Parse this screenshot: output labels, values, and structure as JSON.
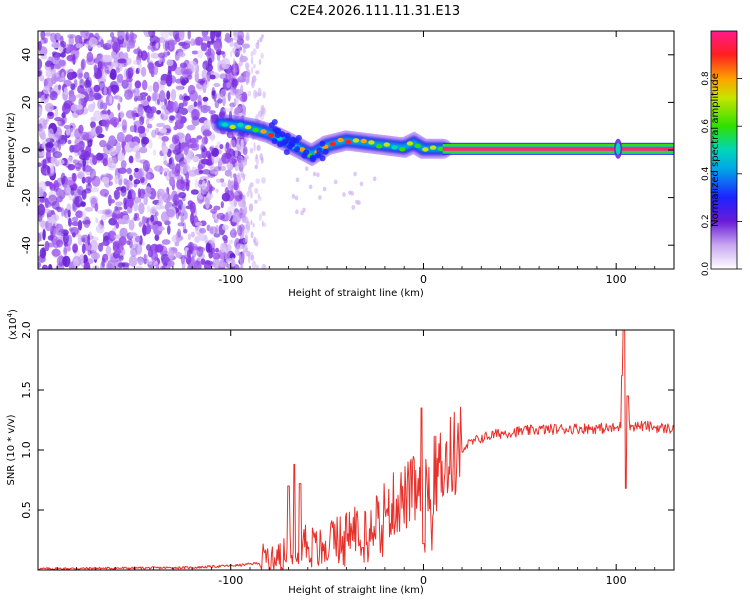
{
  "title": "C2E4.2026.111.11.31.E13",
  "chart_data": [
    {
      "type": "heatmap",
      "subtype": "spectrogram",
      "xlabel": "Height of straight line (km)",
      "ylabel": "Frequency (Hz)",
      "xlim": [
        -200,
        130
      ],
      "ylim": [
        -50,
        50
      ],
      "xticks": [
        -100,
        0,
        100
      ],
      "xtick_labels": [
        "-100",
        "0",
        "100"
      ],
      "yticks": [
        -40,
        -20,
        0,
        20,
        40
      ],
      "ytick_labels": [
        "-40",
        "-20",
        "0",
        "20",
        "40"
      ],
      "colorbar": {
        "label": "Normalized spectral amplitude",
        "range": [
          0,
          1
        ],
        "ticks": [
          0,
          0.2,
          0.4,
          0.6,
          0.8
        ],
        "tick_labels": [
          "0.0",
          "0.2",
          "0.4",
          "0.6",
          "0.8"
        ]
      },
      "noise_region_x": [
        -200,
        -100
      ],
      "ridge": {
        "x": [
          -105,
          -95,
          -88,
          -80,
          -72,
          -65,
          -58,
          -50,
          -40,
          -30,
          -20,
          -10,
          -5,
          0,
          10
        ],
        "freq": [
          11,
          10,
          9,
          7,
          4,
          1,
          -2,
          2,
          4,
          3,
          2,
          1,
          3,
          0.5,
          0.5
        ]
      },
      "steady_line": {
        "x": [
          10,
          130
        ],
        "freq": 0.5
      },
      "spike_x": 101
    },
    {
      "type": "line",
      "xlabel": "Height of straight line (km)",
      "ylabel": "SNR (10 * v/v)",
      "y_scale_note_base": "(x10",
      "y_scale_note_exp": "4",
      "y_scale_note_end": ")",
      "xlim": [
        -200,
        130
      ],
      "ylim": [
        0,
        2.0
      ],
      "xticks": [
        -100,
        0,
        100
      ],
      "xtick_labels": [
        "-100",
        "0",
        "100"
      ],
      "yticks": [
        0.5,
        1.0,
        1.5,
        2.0
      ],
      "ytick_labels": [
        "0.5",
        "1.0",
        "1.5",
        "2.0"
      ],
      "series": [
        {
          "name": "SNR",
          "color": "#e8302a",
          "envelope": {
            "x": [
              -200,
              -120,
              -95,
              -85,
              -78,
              -72,
              -68,
              -64,
              -60,
              -55,
              -48,
              -40,
              -32,
              -25,
              -18,
              -10,
              -5,
              -2,
              0,
              2,
              5,
              10,
              20,
              30,
              40,
              60,
              80,
              95,
              100,
              103,
              105,
              108,
              115,
              125,
              130
            ],
            "y": [
              0.01,
              0.02,
              0.04,
              0.06,
              0.1,
              0.16,
              0.24,
              0.26,
              0.22,
              0.16,
              0.22,
              0.3,
              0.38,
              0.44,
              0.52,
              0.6,
              0.66,
              0.62,
              0.6,
              0.66,
              0.78,
              0.88,
              1.02,
              1.1,
              1.14,
              1.17,
              1.18,
              1.18,
              1.18,
              1.2,
              1.2,
              1.2,
              1.2,
              1.18,
              1.18
            ]
          },
          "spikes": [
            {
              "x": -70,
              "y": 0.7
            },
            {
              "x": -67,
              "y": 0.88
            },
            {
              "x": -64,
              "y": 0.72
            },
            {
              "x": -1,
              "y": 1.35
            },
            {
              "x": 0,
              "y": 0.22
            },
            {
              "x": 103,
              "y": 1.62
            },
            {
              "x": 104,
              "y": 2.0
            },
            {
              "x": 105,
              "y": 0.68
            },
            {
              "x": 106,
              "y": 1.45
            }
          ]
        }
      ]
    }
  ]
}
